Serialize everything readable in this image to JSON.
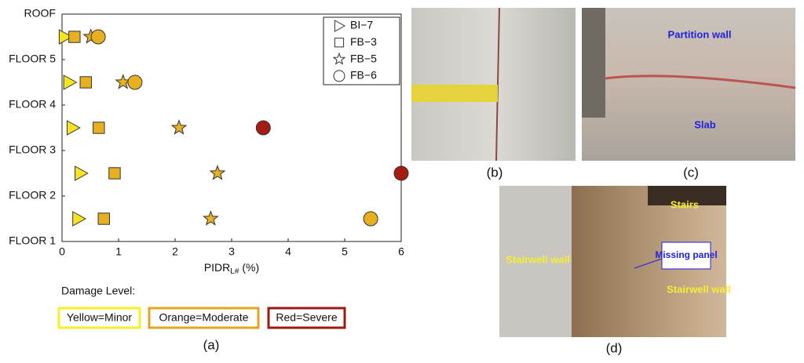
{
  "chart_data": {
    "type": "scatter",
    "x_label": "PIDR",
    "x_label_sub": "L#",
    "x_label_unit": "(%)",
    "xlim": [
      0,
      6
    ],
    "xticks": [
      0,
      1,
      2,
      3,
      4,
      5,
      6
    ],
    "ylim": [
      1,
      6
    ],
    "yticks": [
      {
        "value": 1,
        "label": "FLOOR 1"
      },
      {
        "value": 2,
        "label": "FLOOR 2"
      },
      {
        "value": 3,
        "label": "FLOOR 3"
      },
      {
        "value": 4,
        "label": "FLOOR 4"
      },
      {
        "value": 5,
        "label": "FLOOR 5"
      },
      {
        "value": 6,
        "label": "ROOF"
      }
    ],
    "legend": "upper right",
    "series": [
      {
        "name": "BI−7",
        "marker": "triangle-right",
        "x": [
          0.29,
          0.33,
          0.19,
          0.13,
          0.05
        ],
        "values": [
          1.5,
          2.5,
          3.5,
          4.5,
          5.5
        ],
        "colors": [
          "#f6e424",
          "#f6e424",
          "#f6e424",
          "#f6e424",
          "#f6e424"
        ]
      },
      {
        "name": "FB−3",
        "marker": "square",
        "x": [
          0.74,
          0.93,
          0.65,
          0.42,
          0.22
        ],
        "values": [
          1.5,
          2.5,
          3.5,
          4.5,
          5.5
        ],
        "colors": [
          "#e8b01e",
          "#e8b01e",
          "#e8b01e",
          "#e8b01e",
          "#e8b01e"
        ]
      },
      {
        "name": "FB−5",
        "marker": "star",
        "x": [
          2.63,
          2.75,
          2.07,
          1.08,
          0.51
        ],
        "values": [
          1.5,
          2.5,
          3.5,
          4.5,
          5.5
        ],
        "colors": [
          "#e8b01e",
          "#e8b01e",
          "#e8b01e",
          "#e8b01e",
          "#e8b01e"
        ]
      },
      {
        "name": "FB−6",
        "marker": "circle",
        "x": [
          5.46,
          6.0,
          3.56,
          1.29,
          0.64
        ],
        "values": [
          1.5,
          2.5,
          3.5,
          4.5,
          5.5
        ],
        "colors": [
          "#e8b01e",
          "#a51c13",
          "#a51c13",
          "#e8b01e",
          "#e8b01e"
        ]
      }
    ]
  },
  "damage_legend": {
    "title": "Damage Level:",
    "levels": [
      {
        "label": "Yellow=Minor",
        "color": "#f6ef2a"
      },
      {
        "label": "Orange=Moderate",
        "color": "#e3a51e"
      },
      {
        "label": "Red=Severe",
        "color": "#9c1a12"
      }
    ]
  },
  "captions": [
    "(a)",
    "(b)",
    "(c)",
    "(d)"
  ],
  "photo_c": {
    "labels": [
      "Partition wall",
      "Slab"
    ]
  },
  "photo_d": {
    "labels": [
      "Stairs",
      "Stairwell wall",
      "Missing panel",
      "Stairwell wall"
    ]
  }
}
